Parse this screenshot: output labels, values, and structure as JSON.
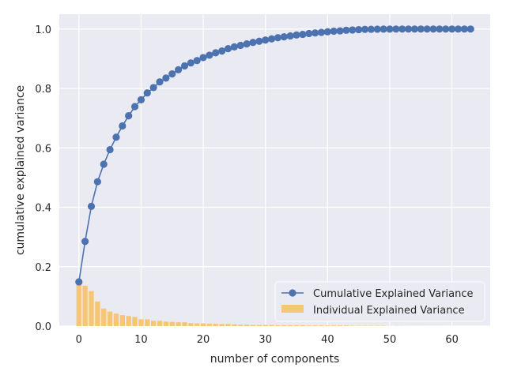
{
  "chart_data": {
    "type": "bar+line",
    "title": "",
    "xlabel": "number of components",
    "ylabel": "cumulative explained variance",
    "xlim": [
      -3.15,
      66.15
    ],
    "ylim": [
      0.0,
      1.05
    ],
    "xticks": [
      0,
      10,
      20,
      30,
      40,
      50,
      60
    ],
    "yticks": [
      0.0,
      0.2,
      0.4,
      0.6,
      0.8,
      1.0
    ],
    "xtick_labels": [
      "0",
      "10",
      "20",
      "30",
      "40",
      "50",
      "60"
    ],
    "ytick_labels": [
      "0.0",
      "0.2",
      "0.4",
      "0.6",
      "0.8",
      "1.0"
    ],
    "grid": true,
    "legend_position": "lower-right",
    "colors": {
      "background": "#eaeaf2",
      "grid": "#ffffff",
      "line": "#4c72b0",
      "bar": "#f5c26b"
    },
    "series": [
      {
        "name": "Cumulative Explained Variance",
        "kind": "line",
        "x": [
          0,
          1,
          2,
          3,
          4,
          5,
          6,
          7,
          8,
          9,
          10,
          11,
          12,
          13,
          14,
          15,
          16,
          17,
          18,
          19,
          20,
          21,
          22,
          23,
          24,
          25,
          26,
          27,
          28,
          29,
          30,
          31,
          32,
          33,
          34,
          35,
          36,
          37,
          38,
          39,
          40,
          41,
          42,
          43,
          44,
          45,
          46,
          47,
          48,
          49,
          50,
          51,
          52,
          53,
          54,
          55,
          56,
          57,
          58,
          59,
          60,
          61,
          62,
          63
        ],
        "values": [
          0.149,
          0.285,
          0.403,
          0.486,
          0.545,
          0.594,
          0.636,
          0.674,
          0.708,
          0.739,
          0.762,
          0.785,
          0.803,
          0.822,
          0.835,
          0.849,
          0.863,
          0.876,
          0.886,
          0.894,
          0.904,
          0.912,
          0.92,
          0.926,
          0.934,
          0.94,
          0.945,
          0.95,
          0.955,
          0.959,
          0.963,
          0.967,
          0.971,
          0.974,
          0.977,
          0.98,
          0.982,
          0.985,
          0.987,
          0.989,
          0.991,
          0.993,
          0.994,
          0.996,
          0.997,
          0.998,
          0.999,
          0.9993,
          0.9996,
          0.9998,
          0.9999,
          1.0,
          1.0,
          1.0,
          1.0,
          1.0,
          1.0,
          1.0,
          1.0,
          1.0,
          1.0,
          1.0,
          1.0,
          1.0
        ]
      },
      {
        "name": "Individual Explained Variance",
        "kind": "bar",
        "x": [
          0,
          1,
          2,
          3,
          4,
          5,
          6,
          7,
          8,
          9,
          10,
          11,
          12,
          13,
          14,
          15,
          16,
          17,
          18,
          19,
          20,
          21,
          22,
          23,
          24,
          25,
          26,
          27,
          28,
          29,
          30,
          31,
          32,
          33,
          34,
          35,
          36,
          37,
          38,
          39,
          40,
          41,
          42,
          43,
          44,
          45,
          46,
          47,
          48,
          49,
          50,
          51,
          52,
          53,
          54,
          55,
          56,
          57,
          58,
          59,
          60,
          61,
          62,
          63
        ],
        "values": [
          0.149,
          0.136,
          0.118,
          0.083,
          0.059,
          0.049,
          0.042,
          0.037,
          0.034,
          0.031,
          0.023,
          0.023,
          0.018,
          0.018,
          0.015,
          0.014,
          0.013,
          0.013,
          0.01,
          0.009,
          0.009,
          0.008,
          0.008,
          0.007,
          0.007,
          0.006,
          0.005,
          0.005,
          0.004,
          0.004,
          0.004,
          0.004,
          0.003,
          0.003,
          0.003,
          0.003,
          0.003,
          0.002,
          0.002,
          0.002,
          0.002,
          0.002,
          0.002,
          0.002,
          0.001,
          0.001,
          0.001,
          0.001,
          0.001,
          0.001,
          0.0005,
          0.0005,
          0.0004,
          0.0003,
          0.0002,
          0.0002,
          0.0001,
          0.0001,
          0.0001,
          0.0,
          0.0,
          0.0,
          0.0,
          0.0
        ]
      }
    ]
  }
}
